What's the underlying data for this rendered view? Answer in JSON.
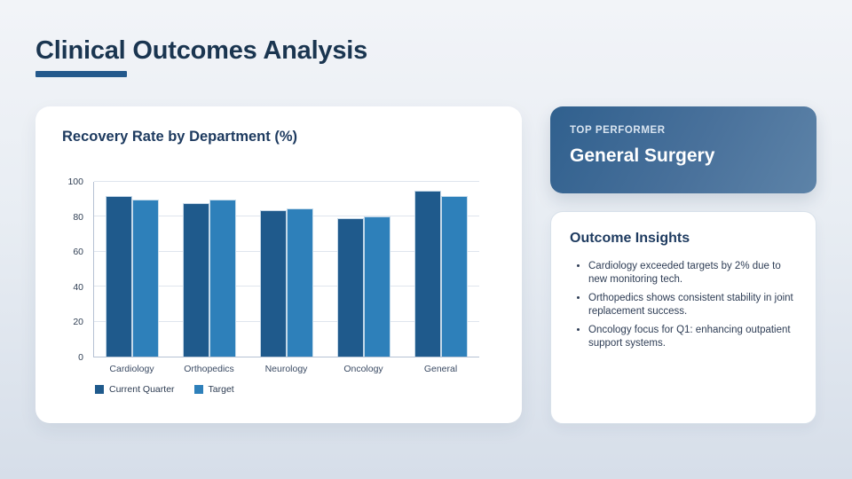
{
  "page": {
    "title": "Clinical Outcomes Analysis"
  },
  "chart_data": {
    "type": "bar",
    "title": "Recovery Rate by Department (%)",
    "categories": [
      "Cardiology",
      "Orthopedics",
      "Neurology",
      "Oncology",
      "General"
    ],
    "series": [
      {
        "name": "Current Quarter",
        "color": "#1f5a8c",
        "values": [
          92,
          88,
          84,
          79,
          95
        ]
      },
      {
        "name": "Target",
        "color": "#2e80ba",
        "values": [
          90,
          90,
          85,
          80,
          92
        ]
      }
    ],
    "ylim": [
      0,
      100
    ],
    "yticks": [
      0,
      20,
      40,
      60,
      80,
      100
    ],
    "grid": true,
    "legend_position": "bottom-left"
  },
  "top_performer": {
    "label": "TOP PERFORMER",
    "value": "General Surgery"
  },
  "insights": {
    "title": "Outcome Insights",
    "items": [
      "Cardiology exceeded targets by 2% due to new monitoring tech.",
      "Orthopedics shows consistent stability in joint replacement success.",
      "Oncology focus for Q1: enhancing outpatient support systems."
    ]
  },
  "colors": {
    "background_top": "#f2f4f8",
    "background_bottom": "#d6dee9",
    "title_text": "#1a3550",
    "accent_underline": "#23598c",
    "series_current": "#1f5a8c",
    "series_target": "#2e80ba",
    "top_performer_gradient_start": "#30608e",
    "top_performer_gradient_end": "#5d83a8"
  }
}
